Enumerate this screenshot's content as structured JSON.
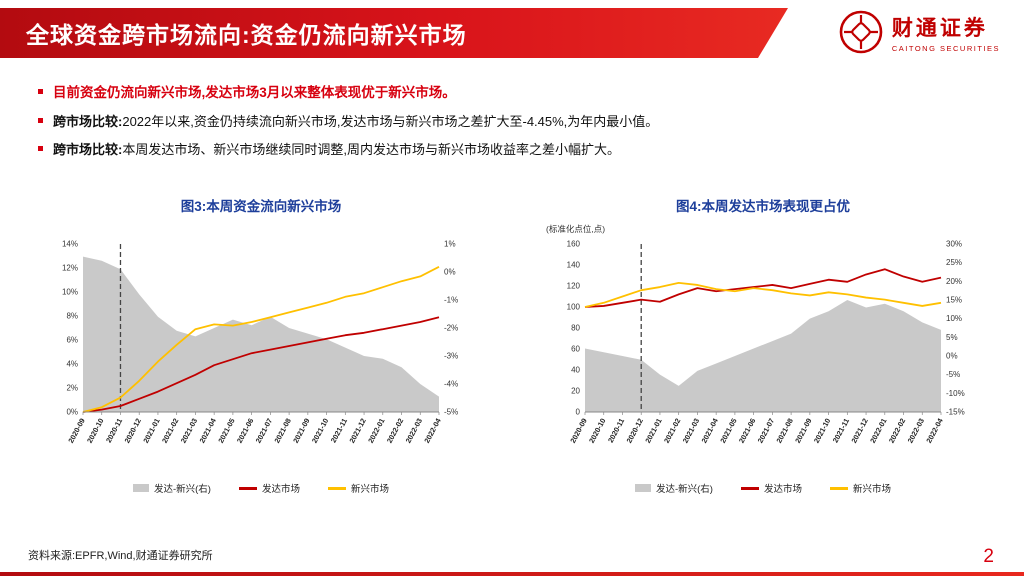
{
  "header": {
    "title": "全球资金跨市场流向:资金仍流向新兴市场",
    "logo": {
      "name_cn": "财通证券",
      "name_en": "CAITONG SECURITIES"
    }
  },
  "bullets": [
    {
      "prefix": "",
      "text": "目前资金仍流向新兴市场,发达市场3月以来整体表现优于新兴市场。"
    },
    {
      "prefix": "跨市场比较:",
      "text": "2022年以来,资金仍持续流向新兴市场,发达市场与新兴市场之差扩大至-4.45%,为年内最小值。"
    },
    {
      "prefix": "跨市场比较:",
      "text": "本周发达市场、新兴市场继续同时调整,周内发达市场与新兴市场收益率之差小幅扩大。"
    }
  ],
  "chart_data": [
    {
      "type": "line",
      "title": "图3:本周资金流向新兴市场",
      "categories": [
        "2020-09",
        "2020-10",
        "2020-11",
        "2020-12",
        "2021-01",
        "2021-02",
        "2021-03",
        "2021-04",
        "2021-05",
        "2021-06",
        "2021-07",
        "2021-08",
        "2021-09",
        "2021-10",
        "2021-11",
        "2021-12",
        "2022-01",
        "2022-02",
        "2022-03",
        "2022-04"
      ],
      "left_axis": {
        "min": 0,
        "max": 14,
        "step": 2,
        "suffix": "%"
      },
      "right_axis": {
        "min": -5,
        "max": 1,
        "step": 1,
        "suffix": "%"
      },
      "dashed_x": "2020-11",
      "series": [
        {
          "name": "发达-新兴(右)",
          "type": "area",
          "axis": "right",
          "color": "#c9c9c9",
          "values": [
            0.55,
            0.4,
            0.1,
            -0.8,
            -1.6,
            -2.1,
            -2.3,
            -2.0,
            -1.7,
            -1.9,
            -1.6,
            -2.0,
            -2.2,
            -2.4,
            -2.7,
            -3.0,
            -3.1,
            -3.4,
            -4.0,
            -4.45
          ]
        },
        {
          "name": "发达市场",
          "type": "line",
          "axis": "left",
          "color": "#c00000",
          "values": [
            0.0,
            0.2,
            0.5,
            1.1,
            1.7,
            2.4,
            3.1,
            3.9,
            4.4,
            4.9,
            5.2,
            5.5,
            5.8,
            6.1,
            6.4,
            6.6,
            6.9,
            7.2,
            7.5,
            7.9
          ]
        },
        {
          "name": "新兴市场",
          "type": "line",
          "axis": "left",
          "color": "#ffc000",
          "values": [
            0.0,
            0.4,
            1.2,
            2.6,
            4.2,
            5.6,
            6.9,
            7.3,
            7.2,
            7.5,
            7.9,
            8.3,
            8.7,
            9.1,
            9.6,
            9.9,
            10.4,
            10.9,
            11.3,
            12.1
          ]
        }
      ]
    },
    {
      "type": "line",
      "title": "图4:本周发达市场表现更占优",
      "note": "(标准化点位,点)",
      "categories": [
        "2020-09",
        "2020-10",
        "2020-11",
        "2020-12",
        "2021-01",
        "2021-02",
        "2021-03",
        "2021-04",
        "2021-05",
        "2021-06",
        "2021-07",
        "2021-08",
        "2021-09",
        "2021-10",
        "2021-11",
        "2021-12",
        "2022-01",
        "2022-02",
        "2022-03",
        "2022-04"
      ],
      "left_axis": {
        "min": 0,
        "max": 160,
        "step": 20,
        "suffix": ""
      },
      "right_axis": {
        "min": -15,
        "max": 30,
        "step": 5,
        "suffix": "%"
      },
      "dashed_x": "2020-12",
      "series": [
        {
          "name": "发达-新兴(右)",
          "type": "area",
          "axis": "right",
          "color": "#c9c9c9",
          "values": [
            2,
            1,
            0,
            -1,
            -5,
            -8,
            -4,
            -2,
            0,
            2,
            4,
            6,
            10,
            12,
            15,
            13,
            14,
            12,
            9,
            7
          ]
        },
        {
          "name": "发达市场",
          "type": "line",
          "axis": "left",
          "color": "#c00000",
          "values": [
            100,
            101,
            104,
            107,
            105,
            112,
            118,
            115,
            117,
            119,
            121,
            118,
            122,
            126,
            124,
            131,
            136,
            129,
            124,
            128
          ]
        },
        {
          "name": "新兴市场",
          "type": "line",
          "axis": "left",
          "color": "#ffc000",
          "values": [
            100,
            104,
            110,
            116,
            119,
            123,
            121,
            117,
            115,
            118,
            116,
            113,
            111,
            114,
            112,
            109,
            107,
            104,
            101,
            104
          ]
        }
      ]
    }
  ],
  "footer": {
    "source": "资料来源:EPFR,Wind,财通证券研究所",
    "page": "2"
  },
  "colors": {
    "accent_red": "#d7000f",
    "title_blue": "#1e3f9b",
    "line_red": "#c00000",
    "line_yellow": "#ffc000",
    "area_gray": "#c9c9c9"
  }
}
